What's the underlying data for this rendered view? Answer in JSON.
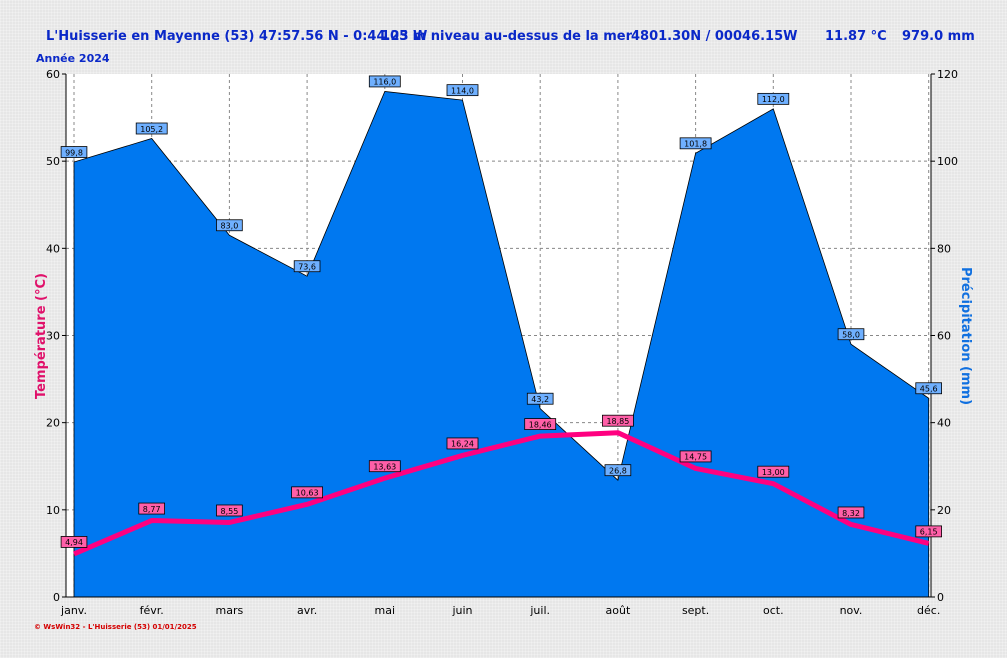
{
  "header": {
    "station": "L'Huisserie en Mayenne (53) 47:57.56 N - 0:44.23 W",
    "altitude": "105 m niveau au-dessus de la mer",
    "grid_ref": "4801.30N / 00046.15W",
    "mean_temp": "11.87 °C",
    "total_precip": "979.0 mm"
  },
  "subtitle": "Année  2024",
  "footer": "© WsWin32 - L'Huisserie (53)  01/01/2025",
  "colors": {
    "precip_fill": "#0078f0",
    "temp_line": "#ff0080",
    "temp_axis_label": "#e0106a",
    "precip_axis_label": "#1070e0",
    "precip_label_bg": "#6fb0ff",
    "temp_label_bg": "#ff5fa8"
  },
  "chart_data": {
    "type": "area",
    "categories": [
      "janv.",
      "févr.",
      "mars",
      "avr.",
      "mai",
      "juin",
      "juil.",
      "août",
      "sept.",
      "oct.",
      "nov.",
      "déc."
    ],
    "ylabel_left": "Température  (°C)",
    "ylabel_right": "Précipitation  (mm)",
    "ylim_left": [
      0,
      60
    ],
    "ylim_right": [
      0,
      120
    ],
    "yticks_left": [
      "0",
      "10",
      "20",
      "30",
      "40",
      "50",
      "60"
    ],
    "yticks_right": [
      "0",
      "20",
      "40",
      "60",
      "80",
      "100",
      "120"
    ],
    "grid": true,
    "series": [
      {
        "axis": "right",
        "type": "area",
        "values": [
          99.8,
          105.2,
          83.0,
          73.6,
          116.0,
          114.0,
          43.2,
          26.8,
          101.8,
          112.0,
          58.0,
          45.6
        ],
        "labels": [
          "99,8",
          "105,2",
          "83,0",
          "73,6",
          "116,0",
          "114,0",
          "43,2",
          "26,8",
          "101,8",
          "112,0",
          "58,0",
          "45,6"
        ]
      },
      {
        "axis": "left",
        "type": "line",
        "values": [
          4.94,
          8.77,
          8.55,
          10.63,
          13.63,
          16.24,
          18.46,
          18.85,
          14.75,
          13.0,
          8.32,
          6.15
        ],
        "labels": [
          "4,94",
          "8,77",
          "8,55",
          "10,63",
          "13,63",
          "16,24",
          "18,46",
          "18,85",
          "14,75",
          "13,00",
          "8,32",
          "6,15"
        ]
      }
    ]
  }
}
